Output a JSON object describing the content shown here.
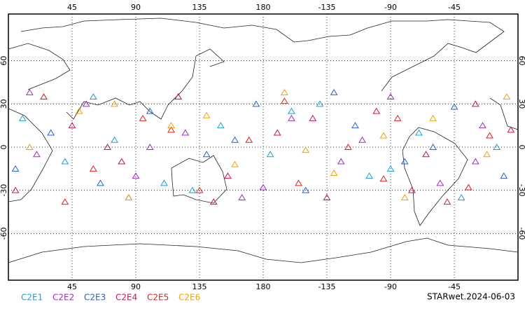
{
  "chart_data": {
    "type": "scatter",
    "xticks": [
      45,
      90,
      135,
      180,
      -135,
      -90,
      -45
    ],
    "yticks": [
      60,
      30,
      0,
      -30,
      -60
    ],
    "xlim": [
      0,
      360
    ],
    "ylim": [
      -90,
      90
    ],
    "grid": true,
    "credit": "STARwet.2024-06-03",
    "series": [
      {
        "name": "C2E1",
        "color": "#1aa0d8",
        "lon": [
          10,
          40,
          75,
          110,
          150,
          185,
          220,
          255,
          290,
          320,
          345,
          60,
          130,
          200,
          270
        ],
        "lat": [
          20,
          -10,
          5,
          -25,
          15,
          -5,
          30,
          -20,
          10,
          -35,
          0,
          35,
          -30,
          25,
          -15
        ]
      },
      {
        "name": "C2E2",
        "color": "#a02cc0",
        "lon": [
          20,
          55,
          90,
          125,
          165,
          200,
          235,
          270,
          305,
          335,
          15,
          100,
          180,
          250,
          330
        ],
        "lat": [
          -5,
          30,
          -20,
          10,
          -35,
          20,
          -10,
          35,
          -25,
          15,
          38,
          0,
          -28,
          5,
          -10
        ]
      },
      {
        "name": "C2E3",
        "color": "#2860d0",
        "lon": [
          30,
          65,
          100,
          140,
          175,
          210,
          245,
          280,
          315,
          350,
          85,
          160,
          230,
          300,
          5
        ],
        "lat": [
          10,
          -25,
          25,
          -5,
          30,
          -30,
          15,
          -10,
          28,
          -20,
          -35,
          5,
          38,
          0,
          -15
        ]
      },
      {
        "name": "C2E4",
        "color": "#c8144c",
        "lon": [
          5,
          45,
          80,
          120,
          155,
          190,
          225,
          260,
          295,
          330,
          70,
          145,
          215,
          285,
          355
        ],
        "lat": [
          -30,
          15,
          -10,
          35,
          -20,
          10,
          -35,
          25,
          -5,
          30,
          0,
          -38,
          20,
          -30,
          12
        ]
      },
      {
        "name": "C2E5",
        "color": "#e02020",
        "lon": [
          25,
          60,
          95,
          135,
          170,
          205,
          240,
          275,
          310,
          340,
          115,
          195,
          265,
          40,
          325
        ],
        "lat": [
          35,
          -15,
          20,
          -30,
          5,
          -25,
          0,
          20,
          -38,
          8,
          12,
          32,
          -22,
          -38,
          -28
        ]
      },
      {
        "name": "C2E6",
        "color": "#f0a010",
        "lon": [
          15,
          50,
          85,
          115,
          160,
          195,
          230,
          265,
          300,
          338,
          75,
          140,
          210,
          280,
          352
        ],
        "lat": [
          0,
          25,
          -35,
          15,
          -12,
          38,
          -18,
          8,
          20,
          -5,
          30,
          22,
          -2,
          -35,
          35
        ]
      }
    ]
  }
}
